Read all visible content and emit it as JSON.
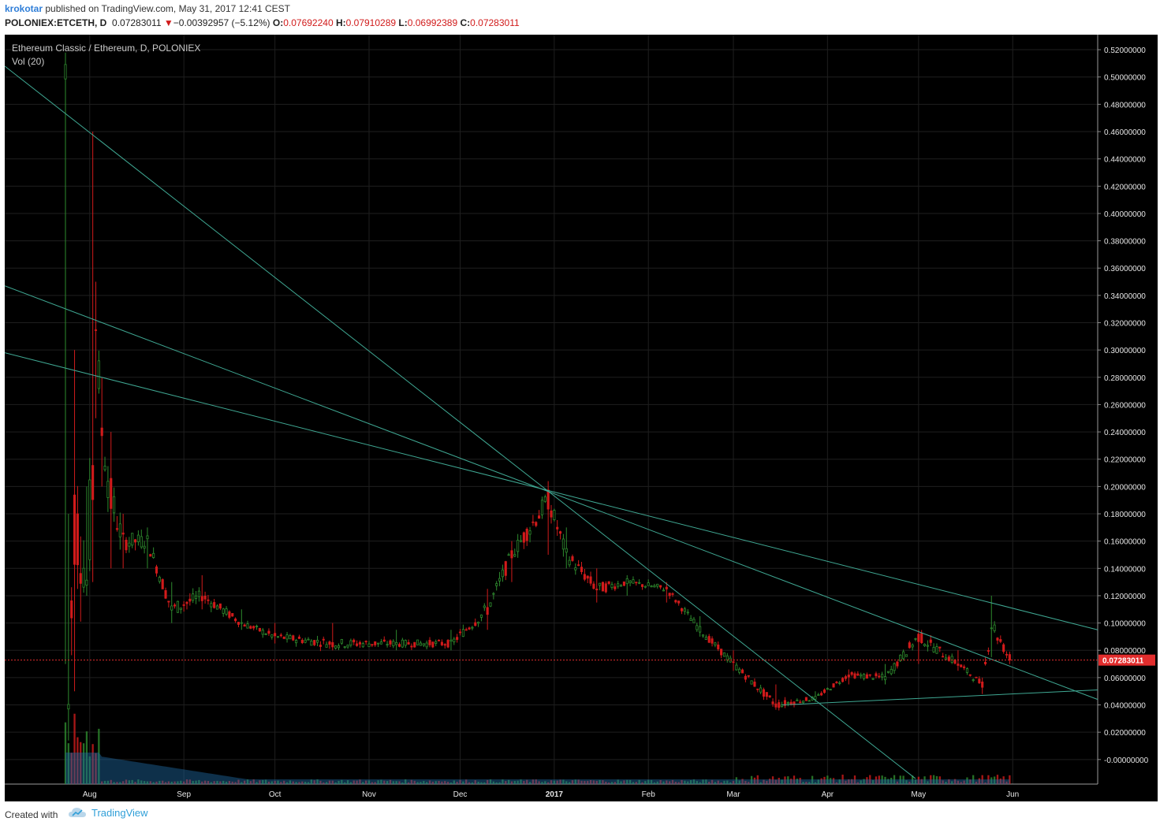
{
  "header": {
    "author": "krokotar",
    "published_text": " published on TradingView.com, May 31, 2017 12:41 CEST",
    "symbol": "POLONIEX:ETCETH, D",
    "last": "0.07283011",
    "change": "−0.00392957 (−5.12%)",
    "o_label": "O:",
    "o_value": "0.07692240",
    "h_label": "H:",
    "h_value": "0.07910289",
    "l_label": "L:",
    "l_value": "0.06992389",
    "c_label": "C:",
    "c_value": "0.07283011"
  },
  "legend": {
    "title": "Ethereum Classic / Ethereum, D, POLONIEX",
    "indicator": "Vol (20)"
  },
  "footer": {
    "created_with": "Created with",
    "brand": "TradingView"
  },
  "colors": {
    "background": "#000000",
    "up": "#2e8b2e",
    "down": "#d11b1b",
    "trendline": "#3fa893",
    "grid": "#1f1f1f",
    "last_price": "#e22d2d",
    "volume_ma": "#1f6aa5"
  },
  "chart_data": {
    "type": "candlestick",
    "title": "Ethereum Classic / Ethereum, D, POLONIEX",
    "symbol": "POLONIEX:ETCETH",
    "interval": "D",
    "y_tick_labels": [
      "0.52000000",
      "0.50000000",
      "0.48000000",
      "0.46000000",
      "0.44000000",
      "0.42000000",
      "0.40000000",
      "0.38000000",
      "0.36000000",
      "0.34000000",
      "0.32000000",
      "0.30000000",
      "0.28000000",
      "0.26000000",
      "0.24000000",
      "0.22000000",
      "0.20000000",
      "0.18000000",
      "0.16000000",
      "0.14000000",
      "0.12000000",
      "0.10000000",
      "0.08000000",
      "0.06000000",
      "0.04000000",
      "0.02000000",
      "-0.00000000"
    ],
    "ylim": [
      -0.018,
      0.531
    ],
    "x_tick_labels": [
      "Aug",
      "Sep",
      "Oct",
      "Nov",
      "Dec",
      "2017",
      "Feb",
      "Mar",
      "Apr",
      "May",
      "Jun"
    ],
    "x_tick_dates": [
      "2016-08-01",
      "2016-09-01",
      "2016-10-01",
      "2016-11-01",
      "2016-12-01",
      "2017-01-01",
      "2017-02-01",
      "2017-03-01",
      "2017-04-01",
      "2017-05-01",
      "2017-06-01"
    ],
    "xlim": [
      "2016-07-04",
      "2017-06-29"
    ],
    "grid": true,
    "last_price": 0.07283011,
    "last_price_label": "0.07283011",
    "price_path": [
      {
        "date": "2016-07-24",
        "close": 0.5,
        "high": 0.5,
        "low": 0.07
      },
      {
        "date": "2016-07-25",
        "close": 0.04,
        "high": 0.18,
        "low": 0.03
      },
      {
        "date": "2016-07-27",
        "close": 0.18,
        "high": 0.3,
        "low": 0.05
      },
      {
        "date": "2016-07-31",
        "close": 0.13,
        "high": 0.2,
        "low": 0.12
      },
      {
        "date": "2016-08-02",
        "close": 0.21,
        "high": 0.46,
        "low": 0.13
      },
      {
        "date": "2016-08-03",
        "close": 0.32,
        "high": 0.35,
        "low": 0.25
      },
      {
        "date": "2016-08-05",
        "close": 0.24,
        "high": 0.28,
        "low": 0.2
      },
      {
        "date": "2016-08-08",
        "close": 0.19,
        "high": 0.24,
        "low": 0.14
      },
      {
        "date": "2016-08-12",
        "close": 0.16,
        "high": 0.18,
        "low": 0.14
      },
      {
        "date": "2016-08-20",
        "close": 0.16,
        "high": 0.17,
        "low": 0.14
      },
      {
        "date": "2016-08-28",
        "close": 0.11,
        "high": 0.13,
        "low": 0.1
      },
      {
        "date": "2016-09-07",
        "close": 0.12,
        "high": 0.135,
        "low": 0.11
      },
      {
        "date": "2016-09-20",
        "close": 0.1,
        "high": 0.11,
        "low": 0.095
      },
      {
        "date": "2016-10-01",
        "close": 0.09,
        "high": 0.1,
        "low": 0.085
      },
      {
        "date": "2016-10-20",
        "close": 0.085,
        "high": 0.1,
        "low": 0.08
      },
      {
        "date": "2016-11-10",
        "close": 0.085,
        "high": 0.095,
        "low": 0.08
      },
      {
        "date": "2016-11-28",
        "close": 0.085,
        "high": 0.095,
        "low": 0.08
      },
      {
        "date": "2016-12-10",
        "close": 0.11,
        "high": 0.125,
        "low": 0.095
      },
      {
        "date": "2016-12-18",
        "close": 0.15,
        "high": 0.16,
        "low": 0.13
      },
      {
        "date": "2016-12-30",
        "close": 0.19,
        "high": 0.195,
        "low": 0.15
      },
      {
        "date": "2017-01-05",
        "close": 0.15,
        "high": 0.17,
        "low": 0.14
      },
      {
        "date": "2017-01-15",
        "close": 0.125,
        "high": 0.14,
        "low": 0.115
      },
      {
        "date": "2017-01-25",
        "close": 0.13,
        "high": 0.135,
        "low": 0.12
      },
      {
        "date": "2017-02-07",
        "close": 0.125,
        "high": 0.13,
        "low": 0.115
      },
      {
        "date": "2017-02-18",
        "close": 0.095,
        "high": 0.105,
        "low": 0.09
      },
      {
        "date": "2017-03-01",
        "close": 0.07,
        "high": 0.08,
        "low": 0.065
      },
      {
        "date": "2017-03-15",
        "close": 0.04,
        "high": 0.055,
        "low": 0.038
      },
      {
        "date": "2017-03-28",
        "close": 0.045,
        "high": 0.05,
        "low": 0.042
      },
      {
        "date": "2017-04-08",
        "close": 0.062,
        "high": 0.066,
        "low": 0.055
      },
      {
        "date": "2017-04-20",
        "close": 0.06,
        "high": 0.07,
        "low": 0.055
      },
      {
        "date": "2017-05-01",
        "close": 0.09,
        "high": 0.095,
        "low": 0.07
      },
      {
        "date": "2017-05-14",
        "close": 0.07,
        "high": 0.08,
        "low": 0.065
      },
      {
        "date": "2017-05-22",
        "close": 0.055,
        "high": 0.06,
        "low": 0.048
      },
      {
        "date": "2017-05-25",
        "close": 0.1,
        "high": 0.12,
        "low": 0.075
      },
      {
        "date": "2017-05-31",
        "close": 0.0728,
        "high": 0.0791,
        "low": 0.0699
      }
    ],
    "trendlines": [
      {
        "from": {
          "date": "2016-07-04",
          "price": 0.508
        },
        "to": {
          "date": "2017-04-30",
          "price": -0.014
        }
      },
      {
        "from": {
          "date": "2016-07-04",
          "price": 0.347
        },
        "to": {
          "date": "2017-06-29",
          "price": 0.044
        }
      },
      {
        "from": {
          "date": "2016-07-04",
          "price": 0.298
        },
        "to": {
          "date": "2017-06-29",
          "price": 0.095
        }
      },
      {
        "from": {
          "date": "2017-03-17",
          "price": 0.04
        },
        "to": {
          "date": "2017-06-29",
          "price": 0.051
        }
      }
    ]
  }
}
